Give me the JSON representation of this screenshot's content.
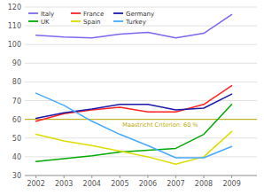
{
  "chart_data": {
    "type": "line",
    "title": "",
    "x": [
      2002,
      2003,
      2004,
      2005,
      2006,
      2007,
      2008,
      2009
    ],
    "series": [
      {
        "name": "Italy",
        "color": "#7b68ee",
        "values": [
          105,
          104,
          103.5,
          105.5,
          106.5,
          103.5,
          106,
          116
        ]
      },
      {
        "name": "France",
        "color": "#ff2222",
        "values": [
          59,
          63,
          65,
          66.5,
          64,
          64,
          68,
          78
        ]
      },
      {
        "name": "Germany",
        "color": "#1a1aaa",
        "values": [
          60.5,
          63.5,
          65.5,
          68,
          68,
          65,
          66,
          73.5
        ]
      },
      {
        "name": "UK",
        "color": "#00aa00",
        "values": [
          37.5,
          39,
          40.5,
          42.5,
          43.5,
          44.5,
          52,
          68
        ]
      },
      {
        "name": "Spain",
        "color": "#dddd00",
        "values": [
          52,
          48.5,
          46,
          43,
          40,
          36,
          40,
          53.5
        ]
      },
      {
        "name": "Turkey",
        "color": "#44aaff",
        "values": [
          74,
          67.5,
          59,
          52,
          46,
          39.5,
          39.5,
          45.5
        ]
      }
    ],
    "annotations": [
      {
        "type": "hline",
        "y": 60,
        "label": "Maastricht Criterion: 60 %",
        "color": "#bbaa00"
      }
    ],
    "xlim": [
      2001.6,
      2009.9
    ],
    "xticks": [
      2002,
      2003,
      2004,
      2005,
      2006,
      2007,
      2008,
      2009
    ],
    "ylim": [
      30,
      120
    ],
    "yticks": [
      30,
      40,
      50,
      60,
      70,
      80,
      90,
      100,
      110,
      120
    ],
    "grid": true,
    "legend": "upper left"
  }
}
